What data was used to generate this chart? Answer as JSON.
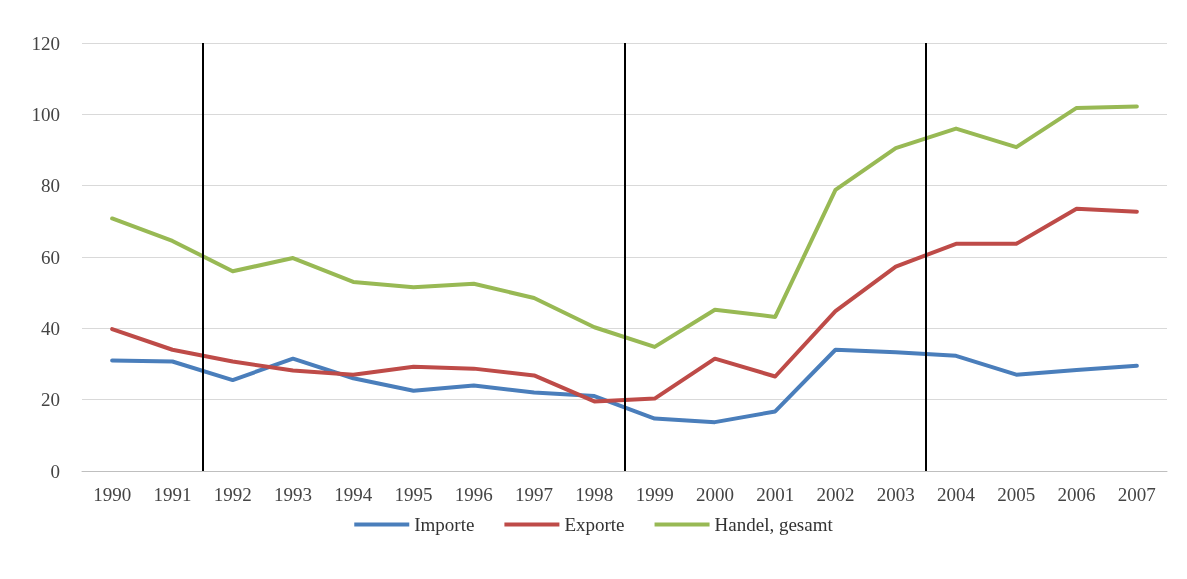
{
  "chart_data": {
    "type": "line",
    "x": [
      1990,
      1991,
      1992,
      1993,
      1994,
      1995,
      1996,
      1997,
      1998,
      1999,
      2000,
      2001,
      2002,
      2003,
      2004,
      2005,
      2006,
      2007
    ],
    "xlim": [
      1989.5,
      2007.5
    ],
    "xticks": [
      1990,
      1991,
      1992,
      1993,
      1994,
      1995,
      1996,
      1997,
      1998,
      1999,
      2000,
      2001,
      2002,
      2003,
      2004,
      2005,
      2006,
      2007
    ],
    "ylim": [
      0,
      120
    ],
    "yticks": [
      0,
      20,
      40,
      60,
      80,
      100,
      120
    ],
    "grid": "y",
    "legend": "bottom",
    "marker": "none",
    "line_style": "solid",
    "ref_lines": [
      {
        "axis": "x",
        "value": 1991.5,
        "color": "#000000"
      },
      {
        "axis": "x",
        "value": 1998.5,
        "color": "#000000"
      },
      {
        "axis": "x",
        "value": 2003.5,
        "color": "#000000"
      }
    ],
    "series": [
      {
        "name": "Importe",
        "color": "#4a7ebb",
        "values": [
          31,
          30.7,
          25.5,
          31.5,
          26,
          22.5,
          24,
          22,
          21,
          14.7,
          13.7,
          16.7,
          34,
          33.3,
          32.3,
          27,
          28.3,
          29.5
        ]
      },
      {
        "name": "Exporte",
        "color": "#be4b48",
        "values": [
          39.8,
          34,
          30.7,
          28.2,
          27,
          29.2,
          28.7,
          26.8,
          19.5,
          20.3,
          31.5,
          26.5,
          44.8,
          57.3,
          63.7,
          63.7,
          73.5,
          72.7
        ]
      },
      {
        "name": "Handel, gesamt",
        "color": "#98b954",
        "values": [
          70.8,
          64.5,
          56,
          59.7,
          53,
          51.5,
          52.5,
          48.5,
          40.3,
          34.8,
          45.2,
          43.2,
          78.8,
          90.5,
          96,
          90.8,
          101.8,
          102.2
        ]
      }
    ]
  }
}
